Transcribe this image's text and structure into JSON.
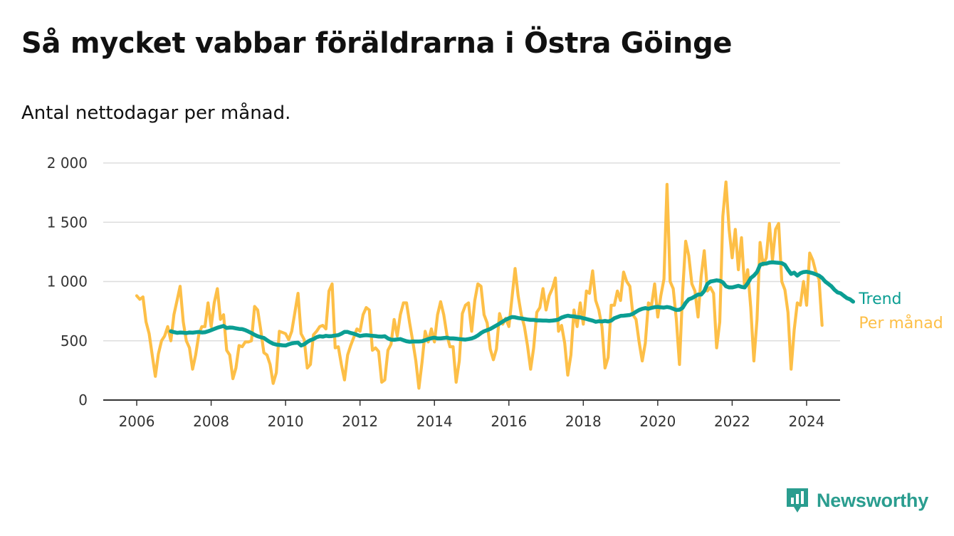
{
  "title": "Så mycket vabbar föräldrarna i Östra Göinge",
  "subtitle": "Antal nettodagar per månad.",
  "brand": {
    "name": "Newsworthy",
    "icon": "newsworthy-logo-icon"
  },
  "colors": {
    "monthly": "#FDBF47",
    "trend": "#0B9E93",
    "grid": "#DDDDDD",
    "axis": "#333333",
    "brand": "#2A9D8F"
  },
  "chart_data": {
    "type": "line",
    "xlim": [
      2005.1,
      2024.9
    ],
    "ylim": [
      0,
      2000
    ],
    "grid": true,
    "y_ticks": [
      0,
      500,
      1000,
      1500,
      2000
    ],
    "y_tick_labels": [
      "0",
      "500",
      "1 000",
      "1 500",
      "2 000"
    ],
    "x_ticks": [
      2006,
      2008,
      2010,
      2012,
      2014,
      2016,
      2018,
      2020,
      2022,
      2024
    ],
    "x_tick_labels": [
      "2006",
      "2008",
      "2010",
      "2012",
      "2014",
      "2016",
      "2018",
      "2020",
      "2022",
      "2024"
    ],
    "series": [
      {
        "name": "Per månad",
        "x_start": 2006.0,
        "x_step": 0.0833333,
        "values": [
          880,
          850,
          870,
          660,
          560,
          380,
          200,
          390,
          500,
          540,
          620,
          500,
          720,
          840,
          960,
          660,
          500,
          440,
          260,
          380,
          550,
          620,
          620,
          820,
          620,
          820,
          940,
          680,
          720,
          420,
          380,
          180,
          270,
          460,
          450,
          490,
          490,
          500,
          790,
          760,
          590,
          400,
          380,
          300,
          140,
          230,
          580,
          570,
          560,
          510,
          580,
          740,
          900,
          560,
          510,
          270,
          300,
          550,
          580,
          620,
          630,
          600,
          920,
          980,
          440,
          450,
          300,
          170,
          380,
          460,
          530,
          600,
          580,
          720,
          780,
          760,
          420,
          440,
          410,
          150,
          170,
          420,
          470,
          680,
          540,
          720,
          820,
          820,
          650,
          500,
          330,
          100,
          320,
          580,
          490,
          600,
          490,
          720,
          830,
          720,
          550,
          450,
          450,
          150,
          330,
          730,
          800,
          820,
          580,
          840,
          980,
          960,
          720,
          650,
          430,
          340,
          430,
          730,
          640,
          690,
          620,
          860,
          1110,
          880,
          720,
          620,
          460,
          260,
          440,
          740,
          780,
          940,
          760,
          880,
          940,
          1030,
          580,
          630,
          480,
          210,
          380,
          760,
          620,
          820,
          640,
          920,
          900,
          1090,
          840,
          760,
          620,
          270,
          360,
          800,
          800,
          920,
          840,
          1080,
          1000,
          960,
          720,
          680,
          490,
          330,
          480,
          820,
          800,
          980,
          700,
          880,
          1020,
          1820,
          1000,
          940,
          680,
          300,
          900,
          1340,
          1220,
          980,
          920,
          700,
          1040,
          1260,
          920,
          950,
          900,
          440,
          660,
          1550,
          1840,
          1440,
          1200,
          1440,
          1100,
          1370,
          960,
          1100,
          780,
          330,
          680,
          1330,
          1140,
          1200,
          1490,
          1180,
          1440,
          1490,
          1000,
          930,
          740,
          260,
          590,
          820,
          800,
          1000,
          800,
          1240,
          1180,
          1080,
          1020,
          630
        ]
      },
      {
        "name": "Trend",
        "x_start": 2006.917,
        "x_step": 0.0833333,
        "values": [
          580,
          573,
          567,
          570,
          568,
          565,
          570,
          568,
          572,
          575,
          570,
          572,
          580,
          590,
          600,
          610,
          618,
          625,
          608,
          612,
          610,
          605,
          600,
          598,
          590,
          578,
          565,
          550,
          538,
          530,
          524,
          505,
          488,
          475,
          468,
          465,
          462,
          460,
          470,
          478,
          482,
          484,
          460,
          470,
          490,
          505,
          515,
          530,
          538,
          535,
          542,
          538,
          540,
          545,
          548,
          560,
          575,
          575,
          566,
          560,
          550,
          540,
          545,
          547,
          545,
          542,
          540,
          536,
          535,
          538,
          520,
          510,
          508,
          512,
          515,
          505,
          496,
          492,
          494,
          494,
          494,
          496,
          505,
          515,
          522,
          526,
          520,
          520,
          523,
          526,
          520,
          520,
          518,
          515,
          512,
          510,
          515,
          520,
          530,
          545,
          565,
          580,
          590,
          600,
          615,
          630,
          645,
          662,
          678,
          690,
          700,
          698,
          692,
          688,
          684,
          680,
          676,
          676,
          672,
          672,
          670,
          670,
          668,
          670,
          673,
          680,
          696,
          705,
          712,
          707,
          706,
          700,
          697,
          690,
          684,
          677,
          670,
          660,
          665,
          663,
          667,
          663,
          670,
          690,
          700,
          710,
          712,
          715,
          718,
          728,
          745,
          760,
          770,
          776,
          770,
          778,
          784,
          786,
          782,
          780,
          785,
          780,
          770,
          760,
          762,
          778,
          820,
          850,
          860,
          875,
          890,
          890,
          920,
          980,
          1000,
          1005,
          1010,
          1006,
          993,
          960,
          950,
          950,
          957,
          964,
          955,
          950,
          985,
          1030,
          1050,
          1080,
          1140,
          1150,
          1152,
          1160,
          1162,
          1160,
          1158,
          1155,
          1140,
          1100,
          1064,
          1075,
          1050,
          1070,
          1080,
          1082,
          1077,
          1070,
          1060,
          1050,
          1030,
          1000,
          980,
          960,
          930,
          908,
          900,
          880,
          860,
          850,
          830
        ]
      }
    ]
  }
}
